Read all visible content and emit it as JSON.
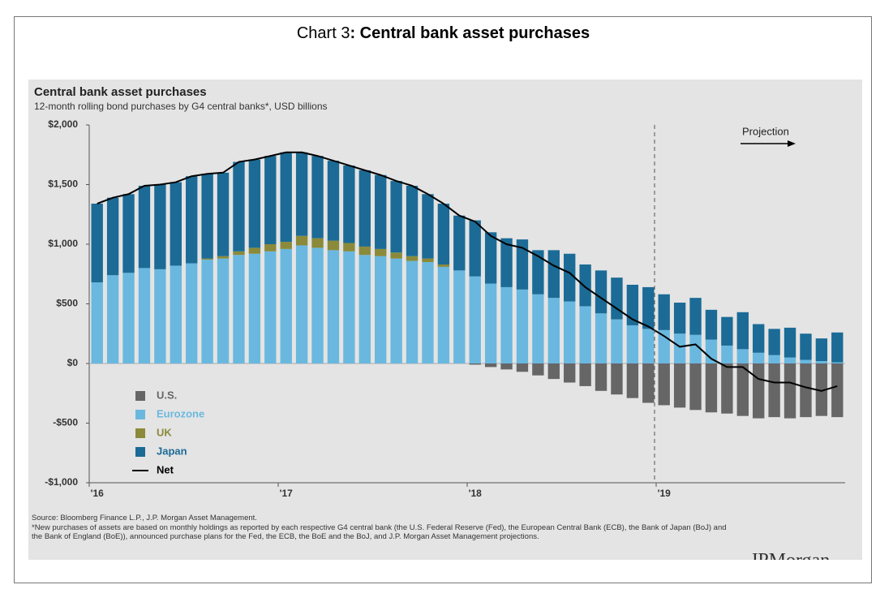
{
  "header": {
    "label": "Chart 3",
    "title": ": Central bank asset purchases"
  },
  "chart_data": {
    "type": "bar",
    "stacked": true,
    "title": "Central bank asset purchases",
    "subtitle": "12-month rolling bond purchases by G4 central banks*, USD billions",
    "categories": [
      "'16",
      null,
      null,
      null,
      null,
      null,
      null,
      null,
      null,
      null,
      null,
      null,
      "'17",
      null,
      null,
      null,
      null,
      null,
      null,
      null,
      null,
      null,
      null,
      null,
      "'18",
      null,
      null,
      null,
      null,
      null,
      null,
      null,
      null,
      null,
      null,
      null,
      "'19",
      null,
      null,
      null,
      null,
      null,
      null,
      null,
      null,
      null,
      null,
      null
    ],
    "series": [
      {
        "name": "U.S.",
        "color": "#666666",
        "values": [
          0,
          0,
          0,
          0,
          0,
          0,
          0,
          0,
          0,
          0,
          0,
          0,
          0,
          0,
          0,
          0,
          0,
          0,
          0,
          0,
          0,
          0,
          0,
          0,
          -10,
          -30,
          -50,
          -70,
          -100,
          -130,
          -160,
          -190,
          -230,
          -260,
          -290,
          -330,
          -350,
          -370,
          -390,
          -410,
          -420,
          -440,
          -460,
          -450,
          -460,
          -450,
          -440,
          -450
        ]
      },
      {
        "name": "Eurozone",
        "color": "#6ab8df",
        "values": [
          680,
          740,
          760,
          800,
          790,
          820,
          840,
          870,
          880,
          910,
          920,
          940,
          960,
          990,
          970,
          950,
          940,
          910,
          900,
          880,
          860,
          850,
          810,
          780,
          730,
          670,
          640,
          620,
          580,
          550,
          520,
          480,
          420,
          370,
          320,
          290,
          280,
          250,
          240,
          200,
          150,
          120,
          90,
          70,
          50,
          30,
          20,
          10
        ]
      },
      {
        "name": "UK",
        "color": "#8a8a3a",
        "values": [
          0,
          0,
          0,
          0,
          0,
          0,
          0,
          10,
          20,
          30,
          50,
          60,
          60,
          80,
          80,
          80,
          70,
          70,
          60,
          50,
          40,
          30,
          20,
          0,
          0,
          0,
          0,
          0,
          0,
          0,
          0,
          0,
          0,
          0,
          0,
          0,
          0,
          0,
          0,
          0,
          0,
          0,
          0,
          0,
          0,
          0,
          0,
          0
        ]
      },
      {
        "name": "Japan",
        "color": "#1b6b96",
        "values": [
          660,
          650,
          660,
          690,
          710,
          700,
          730,
          710,
          700,
          750,
          740,
          740,
          750,
          700,
          690,
          670,
          650,
          640,
          620,
          600,
          590,
          540,
          510,
          460,
          470,
          430,
          410,
          420,
          370,
          400,
          400,
          350,
          360,
          350,
          340,
          350,
          300,
          260,
          310,
          250,
          240,
          310,
          240,
          220,
          250,
          220,
          190,
          250
        ]
      },
      {
        "name": "Net",
        "type": "line",
        "color": "#000000",
        "values": [
          1340,
          1390,
          1420,
          1490,
          1500,
          1520,
          1570,
          1590,
          1600,
          1690,
          1710,
          1740,
          1770,
          1770,
          1740,
          1700,
          1660,
          1620,
          1580,
          1530,
          1490,
          1420,
          1340,
          1240,
          1190,
          1070,
          1000,
          970,
          900,
          820,
          760,
          640,
          550,
          460,
          370,
          310,
          230,
          140,
          160,
          40,
          -30,
          -30,
          -130,
          -160,
          -160,
          -200,
          -230,
          -190
        ]
      }
    ],
    "ylim": [
      -1000,
      2000
    ],
    "yticks": [
      {
        "value": 2000,
        "label": "$2,000"
      },
      {
        "value": 1500,
        "label": "$1,500"
      },
      {
        "value": 1000,
        "label": "$1,000"
      },
      {
        "value": 500,
        "label": "$500"
      },
      {
        "value": 0,
        "label": "$0"
      },
      {
        "value": -500,
        "label": "-$500"
      },
      {
        "value": -1000,
        "label": "-$1,000"
      }
    ],
    "grid": false,
    "legend": "lower left",
    "projection_label": "Projection",
    "source": "Source: Bloomberg Finance L.P., J.P. Morgan Asset Management.",
    "footnote": "*New purchases of assets are based on monthly holdings as reported by each respective G4 central bank (the U.S. Federal Reserve (Fed), the European Central Bank (ECB), the Bank of Japan (BoJ) and the Bank of England (BoE)), announced purchase plans for the Fed, the ECB, the BoE and the BoJ, and J.P. Morgan Asset Management projections.",
    "logo": "JPMorgan"
  }
}
